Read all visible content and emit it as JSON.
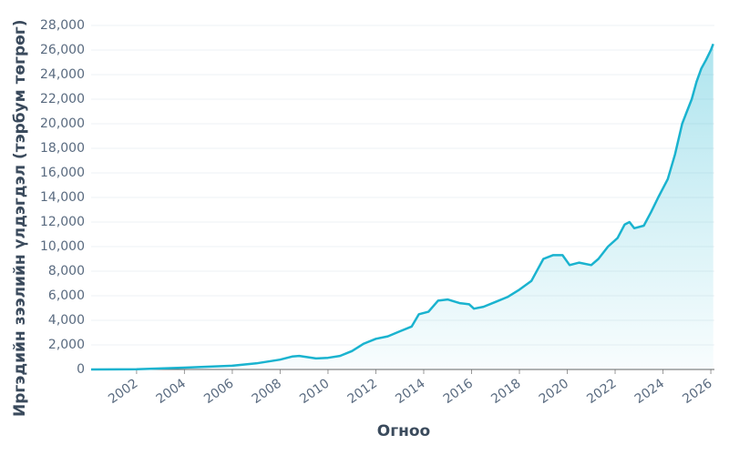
{
  "chart_data": {
    "type": "area",
    "xlabel": "Огноо",
    "ylabel": "Иргэдийн зээлийн үлдэгдэл (тэрбум төгрөг)",
    "x": [
      2000.1,
      2002,
      2004,
      2006,
      2007,
      2008,
      2008.5,
      2008.8,
      2009.5,
      2010,
      2010.5,
      2011,
      2011.5,
      2012,
      2012.5,
      2013,
      2013.5,
      2013.8,
      2014.2,
      2014.6,
      2015,
      2015.5,
      2015.9,
      2016.1,
      2016.5,
      2017,
      2017.5,
      2018,
      2018.5,
      2019,
      2019.4,
      2019.8,
      2020.1,
      2020.5,
      2021,
      2021.3,
      2021.7,
      2022.1,
      2022.4,
      2022.6,
      2022.8,
      2023.2,
      2023.5,
      2023.8,
      2024.2,
      2024.5,
      2024.8,
      2025,
      2025.2,
      2025.4,
      2025.6,
      2025.8,
      2026,
      2026.1
    ],
    "values": [
      0,
      20,
      150,
      300,
      500,
      800,
      1050,
      1100,
      900,
      950,
      1100,
      1500,
      2100,
      2500,
      2700,
      3100,
      3500,
      4500,
      4700,
      5600,
      5700,
      5400,
      5300,
      4950,
      5100,
      5500,
      5900,
      6500,
      7200,
      9000,
      9300,
      9300,
      8500,
      8700,
      8500,
      9000,
      10000,
      10700,
      11800,
      12000,
      11500,
      11700,
      12800,
      14000,
      15500,
      17500,
      20000,
      21000,
      22000,
      23400,
      24500,
      25200,
      26000,
      26500
    ],
    "color": "#1ab3cf",
    "xlim": [
      2000.1,
      2026.15
    ],
    "xticks": [
      2002,
      2004,
      2006,
      2008,
      2010,
      2012,
      2014,
      2016,
      2018,
      2020,
      2022,
      2024,
      2026
    ],
    "ylim": [
      0,
      28000
    ],
    "yticks": [
      0,
      {
        "value": 2000,
        "label": "2,000"
      },
      {
        "value": 4000,
        "label": "4,000"
      },
      {
        "value": 6000,
        "label": "6,000"
      },
      {
        "value": 8000,
        "label": "8,000"
      },
      {
        "value": 10000,
        "label": "10,000"
      },
      {
        "value": 12000,
        "label": "12,000"
      },
      {
        "value": 14000,
        "label": "14,000"
      },
      {
        "value": 16000,
        "label": "16,000"
      },
      {
        "value": 18000,
        "label": "18,000"
      },
      {
        "value": 20000,
        "label": "20,000"
      },
      {
        "value": 22000,
        "label": "22,000"
      },
      {
        "value": 24000,
        "label": "24,000"
      },
      {
        "value": 26000,
        "label": "26,000"
      },
      {
        "value": 28000,
        "label": "28,000"
      }
    ],
    "grid": true
  }
}
